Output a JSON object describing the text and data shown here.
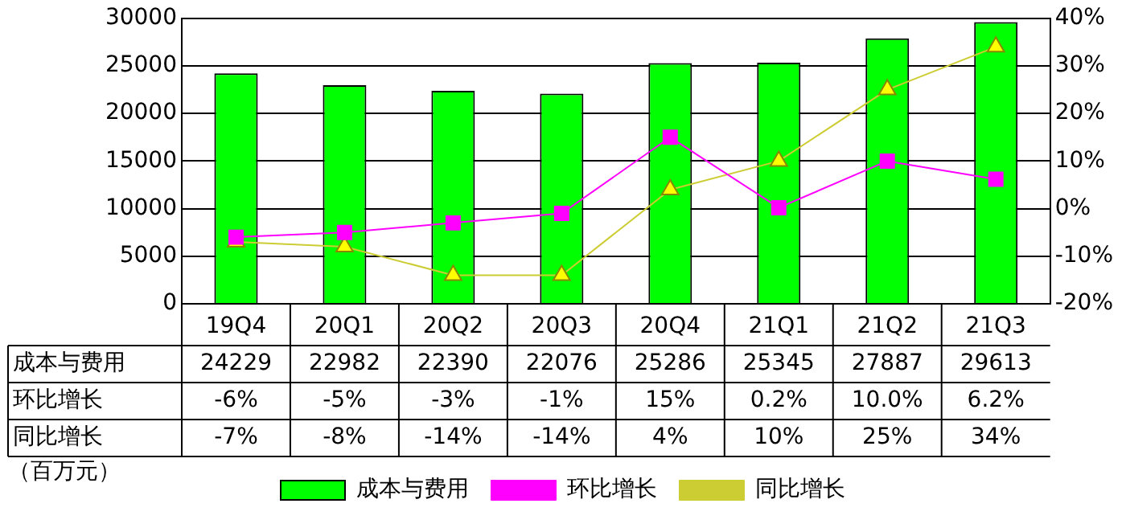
{
  "chart_data": {
    "type": "bar",
    "categories": [
      "19Q4",
      "20Q1",
      "20Q2",
      "20Q3",
      "20Q4",
      "21Q1",
      "21Q2",
      "21Q3"
    ],
    "series": [
      {
        "name": "成本与费用",
        "color": "#00ff00",
        "values": [
          24229,
          22982,
          22390,
          22076,
          25286,
          25345,
          27887,
          29613
        ],
        "value_labels": [
          "24229",
          "22982",
          "22390",
          "22076",
          "25286",
          "25345",
          "27887",
          "29613"
        ]
      },
      {
        "name": "环比增长",
        "type": "line",
        "axis": "y2",
        "color": "#ff00ff",
        "marker": "square",
        "values": [
          -6,
          -5,
          -3,
          -1,
          15,
          0.2,
          10.0,
          6.2
        ],
        "value_labels": [
          "-6%",
          "-5%",
          "-3%",
          "-1%",
          "15%",
          "0.2%",
          "10.0%",
          "6.2%"
        ]
      },
      {
        "name": "同比增长",
        "type": "line",
        "axis": "y2",
        "color": "#cccc33",
        "marker": "triangle",
        "values": [
          -7,
          -8,
          -14,
          -14,
          4,
          10,
          25,
          34
        ],
        "value_labels": [
          "-7%",
          "-8%",
          "-14%",
          "-14%",
          "4%",
          "10%",
          "25%",
          "34%"
        ]
      }
    ],
    "ylim": [
      0,
      30000
    ],
    "yticks": [
      0,
      5000,
      10000,
      15000,
      20000,
      25000,
      30000
    ],
    "y2lim": [
      -20,
      40
    ],
    "y2ticks": [
      {
        "value": -20,
        "label": "-20%"
      },
      {
        "value": -10,
        "label": "-10%"
      },
      {
        "value": 0,
        "label": "0%"
      },
      {
        "value": 10,
        "label": "10%"
      },
      {
        "value": 20,
        "label": "20%"
      },
      {
        "value": 30,
        "label": "30%"
      },
      {
        "value": 40,
        "label": "40%"
      }
    ],
    "grid": "y",
    "legend": "bottom",
    "annotations": [
      "（百万元）"
    ]
  }
}
